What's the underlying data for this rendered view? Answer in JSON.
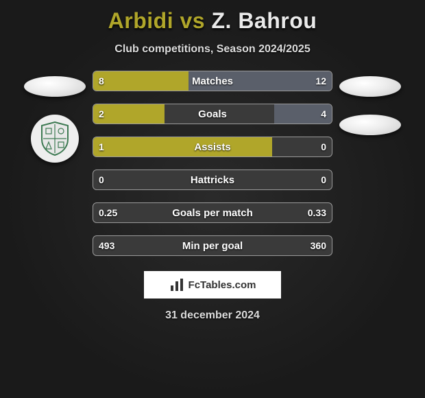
{
  "title": {
    "player1": "Arbidi",
    "vs": "vs",
    "player2": "Z. Bahrou"
  },
  "subtitle": "Club competitions, Season 2024/2025",
  "colors": {
    "left_fill": "#b0a62a",
    "right_fill": "#5a5f6a",
    "bar_bg": "#3a3a3a",
    "border": "#9a9a9a"
  },
  "rows": [
    {
      "label": "Matches",
      "left_val": "8",
      "right_val": "12",
      "left_pct": 40,
      "right_pct": 60
    },
    {
      "label": "Goals",
      "left_val": "2",
      "right_val": "4",
      "left_pct": 30,
      "right_pct": 24
    },
    {
      "label": "Assists",
      "left_val": "1",
      "right_val": "0",
      "left_pct": 75,
      "right_pct": 0
    },
    {
      "label": "Hattricks",
      "left_val": "0",
      "right_val": "0",
      "left_pct": 0,
      "right_pct": 0
    },
    {
      "label": "Goals per match",
      "left_val": "0.25",
      "right_val": "0.33",
      "left_pct": 0,
      "right_pct": 0
    },
    {
      "label": "Min per goal",
      "left_val": "493",
      "right_val": "360",
      "left_pct": 0,
      "right_pct": 0
    }
  ],
  "logo_text": "FcTables.com",
  "date": "31 december 2024"
}
